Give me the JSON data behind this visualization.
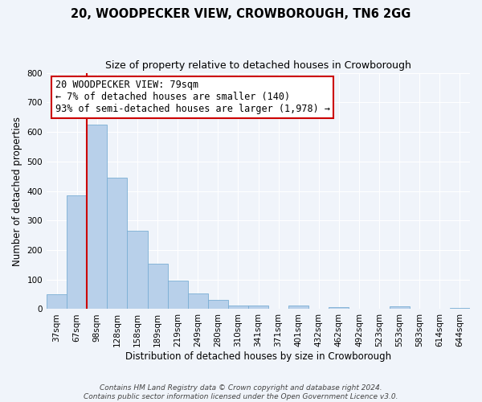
{
  "title": "20, WOODPECKER VIEW, CROWBOROUGH, TN6 2GG",
  "subtitle": "Size of property relative to detached houses in Crowborough",
  "xlabel": "Distribution of detached houses by size in Crowborough",
  "ylabel": "Number of detached properties",
  "bar_labels": [
    "37sqm",
    "67sqm",
    "98sqm",
    "128sqm",
    "158sqm",
    "189sqm",
    "219sqm",
    "249sqm",
    "280sqm",
    "310sqm",
    "341sqm",
    "371sqm",
    "401sqm",
    "432sqm",
    "462sqm",
    "492sqm",
    "523sqm",
    "553sqm",
    "583sqm",
    "614sqm",
    "644sqm"
  ],
  "bar_heights": [
    50,
    385,
    625,
    445,
    265,
    155,
    97,
    52,
    30,
    13,
    12,
    0,
    12,
    0,
    8,
    0,
    0,
    10,
    0,
    0,
    5
  ],
  "bar_color": "#b8d0ea",
  "bar_edge_color": "#7aaed4",
  "ylim": [
    0,
    800
  ],
  "yticks": [
    0,
    100,
    200,
    300,
    400,
    500,
    600,
    700,
    800
  ],
  "vline_color": "#cc0000",
  "annotation_title": "20 WOODPECKER VIEW: 79sqm",
  "annotation_line1": "← 7% of detached houses are smaller (140)",
  "annotation_line2": "93% of semi-detached houses are larger (1,978) →",
  "annotation_box_color": "#ffffff",
  "annotation_box_edge": "#cc0000",
  "footer1": "Contains HM Land Registry data © Crown copyright and database right 2024.",
  "footer2": "Contains public sector information licensed under the Open Government Licence v3.0.",
  "background_color": "#f0f4fa",
  "grid_color": "#ffffff",
  "title_fontsize": 10.5,
  "subtitle_fontsize": 9,
  "axis_label_fontsize": 8.5,
  "tick_fontsize": 7.5,
  "annotation_fontsize": 8.5,
  "footer_fontsize": 6.5
}
